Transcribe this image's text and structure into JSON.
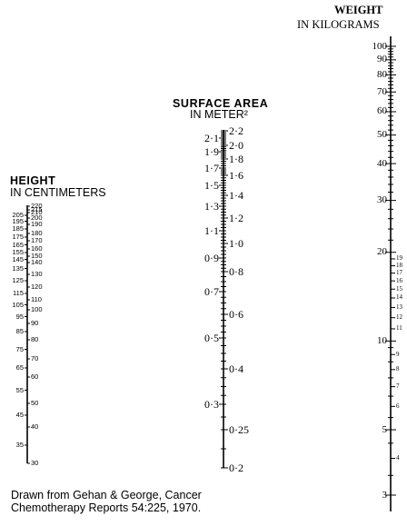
{
  "height_scale": {
    "title": "HEIGHT",
    "subtitle": "IN CENTIMETERS",
    "left_labels": [
      "205",
      "195",
      "185",
      "175",
      "165",
      "155",
      "145",
      "135",
      "125",
      "115",
      "105",
      "95",
      "85",
      "75",
      "65",
      "55",
      "45",
      "35"
    ],
    "right_labels": [
      "220",
      "215",
      "210",
      "200",
      "190",
      "180",
      "170",
      "160",
      "150",
      "140",
      "130",
      "120",
      "110",
      "100",
      "90",
      "80",
      "70",
      "60",
      "50",
      "40",
      "30"
    ]
  },
  "surface_area_scale": {
    "title": "SURFACE AREA",
    "subtitle": "IN METER²",
    "left_labels": [
      "2·1",
      "1·9",
      "1·7",
      "1·5",
      "1·3",
      "1·1",
      "0·9",
      "0·7",
      "0·5",
      "0·3"
    ],
    "right_labels": [
      "2·2",
      "2·0",
      "1·8",
      "1·6",
      "1·4",
      "1·2",
      "1·0",
      "0·8",
      "0·6",
      "0·4",
      "0·25",
      "0·2"
    ]
  },
  "weight_scale": {
    "title": "WEIGHT",
    "subtitle": "IN KILOGRAMS",
    "major_labels": [
      "100",
      "90",
      "80",
      "70",
      "60",
      "50",
      "40",
      "30",
      "20",
      "10",
      "5",
      "3"
    ],
    "minor_labels": [
      "19",
      "18",
      "17",
      "16",
      "15",
      "14",
      "13",
      "12",
      "11",
      "9",
      "8",
      "7",
      "6",
      "4"
    ]
  },
  "caption": {
    "line1": "Drawn from Gehan & George, Cancer",
    "line2": "Chemotherapy Reports 54:225, 1970."
  }
}
